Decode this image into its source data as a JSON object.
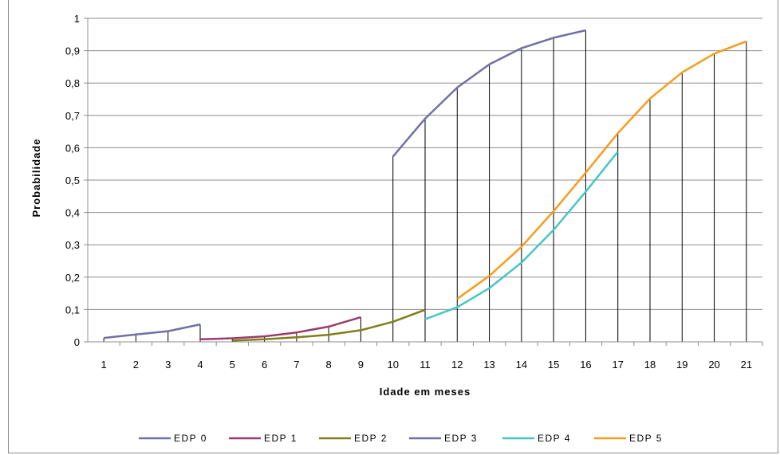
{
  "chart_data": {
    "type": "line",
    "xlabel": "Idade em meses",
    "ylabel": "Probabilidade",
    "xcategories": [
      "1",
      "2",
      "3",
      "4",
      "5",
      "6",
      "7",
      "8",
      "9",
      "10",
      "11",
      "12",
      "13",
      "14",
      "15",
      "16",
      "17",
      "18",
      "19",
      "20",
      "21"
    ],
    "ylim": [
      0,
      1
    ],
    "yticks": [
      "0",
      "0,1",
      "0,2",
      "0,3",
      "0,4",
      "0,5",
      "0,6",
      "0,7",
      "0,8",
      "0,9",
      "1"
    ],
    "grid": "horizontal",
    "legend_position": "bottom",
    "drop_lines": true,
    "series": [
      {
        "name": "EDP 0",
        "color": "#7070a6",
        "x": [
          1,
          2,
          3,
          4
        ],
        "y": [
          0.012,
          0.023,
          0.033,
          0.054
        ]
      },
      {
        "name": "EDP 1",
        "color": "#9b3b6c",
        "x": [
          4,
          5,
          6,
          7,
          8,
          9
        ],
        "y": [
          0.008,
          0.011,
          0.017,
          0.029,
          0.047,
          0.076
        ]
      },
      {
        "name": "EDP 2",
        "color": "#7f7f18",
        "x": [
          5,
          6,
          7,
          8,
          9,
          10,
          11
        ],
        "y": [
          0.004,
          0.008,
          0.014,
          0.022,
          0.036,
          0.062,
          0.099
        ]
      },
      {
        "name": "EDP 3",
        "color": "#7070a6",
        "x": [
          10,
          11,
          12,
          13,
          14,
          15,
          16
        ],
        "y": [
          0.573,
          0.69,
          0.786,
          0.858,
          0.908,
          0.94,
          0.963
        ]
      },
      {
        "name": "EDP 4",
        "color": "#45c6c6",
        "x": [
          11,
          12,
          13,
          14,
          15,
          16,
          17
        ],
        "y": [
          0.07,
          0.107,
          0.166,
          0.245,
          0.346,
          0.464,
          0.588
        ]
      },
      {
        "name": "EDP 5",
        "color": "#f59d1c",
        "x": [
          12,
          13,
          14,
          15,
          16,
          17,
          18,
          19,
          20,
          21
        ],
        "y": [
          0.133,
          0.204,
          0.294,
          0.404,
          0.523,
          0.645,
          0.752,
          0.833,
          0.891,
          0.929
        ]
      }
    ]
  }
}
